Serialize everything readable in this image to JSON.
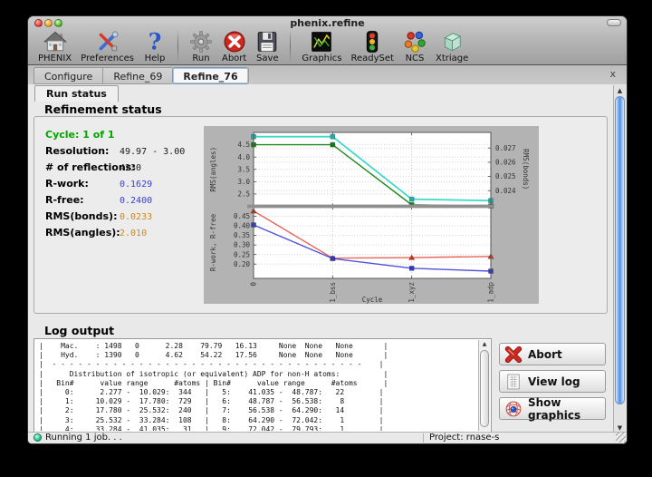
{
  "window": {
    "title": "phenix.refine"
  },
  "toolbar": {
    "groups": [
      [
        {
          "label": "PHENIX",
          "icon": "phenix-home-icon"
        },
        {
          "label": "Preferences",
          "icon": "preferences-tools-icon"
        },
        {
          "label": "Help",
          "icon": "help-question-icon"
        }
      ],
      [
        {
          "label": "Run",
          "icon": "run-gear-icon"
        },
        {
          "label": "Abort",
          "icon": "abort-stop-icon"
        },
        {
          "label": "Save",
          "icon": "save-floppy-icon"
        }
      ],
      [
        {
          "label": "Graphics",
          "icon": "graphics-density-icon"
        },
        {
          "label": "ReadySet",
          "icon": "readyset-trafficlight-icon"
        },
        {
          "label": "NCS",
          "icon": "ncs-spheres-icon"
        },
        {
          "label": "Xtriage",
          "icon": "xtriage-crystal-icon"
        }
      ]
    ]
  },
  "tabs": [
    {
      "label": "Configure",
      "active": false
    },
    {
      "label": "Refine_69",
      "active": false
    },
    {
      "label": "Refine_76",
      "active": true
    }
  ],
  "page": {
    "subtab": "Run status",
    "tab_close": "x"
  },
  "refinement": {
    "heading": "Refinement status",
    "stats": [
      {
        "label": "Cycle: 1 of 1",
        "value": "",
        "label_color": "#00a500",
        "value_color": "#000000"
      },
      {
        "label": "Resolution:",
        "value": "49.97 - 3.00",
        "label_color": "#000000",
        "value_color": "#1a1a1a"
      },
      {
        "label": "# of reflections:",
        "value": "4230",
        "label_color": "#000000",
        "value_color": "#1a1a1a"
      },
      {
        "label": "R-work:",
        "value": "0.1629",
        "label_color": "#000000",
        "value_color": "#3b3bd6"
      },
      {
        "label": "R-free:",
        "value": "0.2400",
        "label_color": "#000000",
        "value_color": "#3b3bd6"
      },
      {
        "label": "RMS(bonds):",
        "value": "0.0233",
        "label_color": "#000000",
        "value_color": "#cc8822"
      },
      {
        "label": "RMS(angles):",
        "value": "2.010",
        "label_color": "#000000",
        "value_color": "#cc8822"
      }
    ]
  },
  "chart_data": {
    "type": "line",
    "categories": [
      "0",
      "1_bss",
      "1_xyz",
      "1_adp"
    ],
    "xlabel": "Cycle",
    "panels": [
      {
        "left_axis": {
          "label": "RMS(angles)",
          "color": "#22991e",
          "ticks": [
            "2.5",
            "3.0",
            "3.5",
            "4.0",
            "4.5"
          ],
          "range": [
            2.0,
            5.0
          ]
        },
        "right_axis": {
          "label": "RMS(bonds)",
          "color": "#2fccc4",
          "ticks": [
            "0.024",
            "0.025",
            "0.026",
            "0.027"
          ],
          "range": [
            0.0229,
            0.0281
          ]
        },
        "series": [
          {
            "name": "RMS(angles)",
            "axis": "left",
            "color": "#1e8a1e",
            "marker": "square",
            "marker_color": "#157a15",
            "values": [
              4.5,
              4.5,
              2.06,
              2.01
            ]
          },
          {
            "name": "RMS(bonds)",
            "axis": "right",
            "color": "#3fd6ce",
            "marker": "square",
            "marker_color": "#1fada6",
            "values": [
              0.0278,
              0.0278,
              0.0234,
              0.0233
            ]
          }
        ]
      },
      {
        "left_axis": {
          "label": "R-work, R-free",
          "color": "#333333",
          "ticks": [
            "0.20",
            "0.25",
            "0.30",
            "0.35",
            "0.40",
            "0.45"
          ],
          "range": [
            0.125,
            0.5
          ]
        },
        "series": [
          {
            "name": "R-free",
            "axis": "left",
            "color": "#e8635a",
            "marker": "triangle",
            "marker_color": "#c03328",
            "values": [
              0.478,
              0.231,
              0.234,
              0.24
            ]
          },
          {
            "name": "R-work",
            "axis": "left",
            "color": "#4f52d8",
            "marker": "square",
            "marker_color": "#3438c0",
            "values": [
              0.405,
              0.229,
              0.178,
              0.163
            ]
          }
        ]
      }
    ]
  },
  "log": {
    "heading": "Log output",
    "lines": [
      "|    Mac.    : 1498   0      2.28    79.79   16.13     None  None   None       |",
      "|    Hyd.    : 1390   0      4.62    54.22   17.56     None  None   None       |",
      "|  - - - - - - - - - - - - - - - - - - - - - - - - - - - - - - - - - - - -    |",
      "|      Distribution of isotropic (or equivalent) ADP for non-H atoms:          |",
      "|   Bin#      value range      #atoms | Bin#      value range      #atoms      |",
      "|     0:      2.277 -  10.029:  344   |   5:    41.035 -  48.787:   22        |",
      "|     1:     10.029 -  17.780:  729   |   6:    48.787 -  56.538:    8        |",
      "|     2:     17.780 -  25.532:  240   |   7:    56.538 -  64.290:   14        |",
      "|     3:     25.532 -  33.284:  108   |   8:    64.290 -  72.042:    1        |",
      "|     4:     33.284 -  41.035:   31   |   9:    72.042 -  79.793:    1        |"
    ]
  },
  "actions": [
    {
      "label": "Abort",
      "icon": "abort-x-icon"
    },
    {
      "label": "View log",
      "icon": "view-log-document-icon"
    },
    {
      "label": "Show graphics",
      "icon": "show-graphics-molecule-icon"
    }
  ],
  "statusbar": {
    "status": "Running 1 job. . .",
    "project": "Project: rnase-s"
  }
}
